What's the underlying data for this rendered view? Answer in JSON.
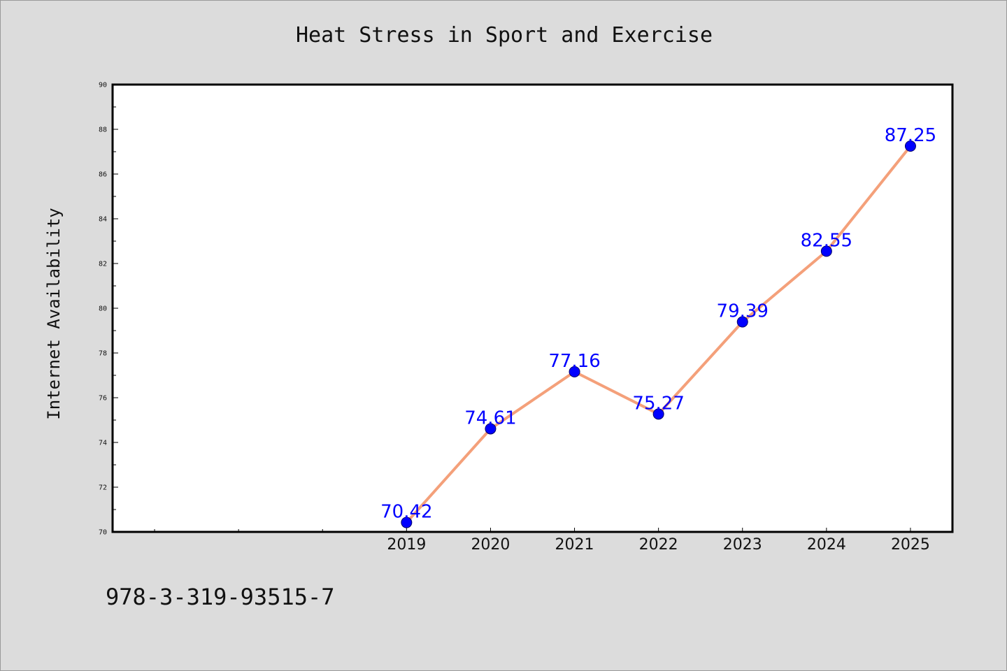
{
  "chart_data": {
    "type": "line",
    "title": "Heat Stress in Sport and Exercise",
    "ylabel": "Internet Availability",
    "xlabel": "",
    "x": [
      "2019",
      "2020",
      "2021",
      "2022",
      "2023",
      "2024",
      "2025"
    ],
    "values": [
      70.42,
      74.61,
      77.16,
      75.27,
      79.39,
      82.55,
      87.25
    ],
    "data_labels": [
      "70.42",
      "74.61",
      "77.16",
      "75.27",
      "79.39",
      "82.55",
      "87.25"
    ],
    "ylim": [
      70,
      90
    ],
    "yticks": [
      70,
      72,
      74,
      76,
      78,
      80,
      82,
      84,
      86,
      88,
      90
    ],
    "x_slots": 10,
    "x_first_slot": 3,
    "grid": false,
    "line_color": "#f4a07a",
    "marker_color": "#0000ff",
    "label_color": "#0000ff"
  },
  "footer": {
    "code": "978-3-319-93515-7"
  }
}
